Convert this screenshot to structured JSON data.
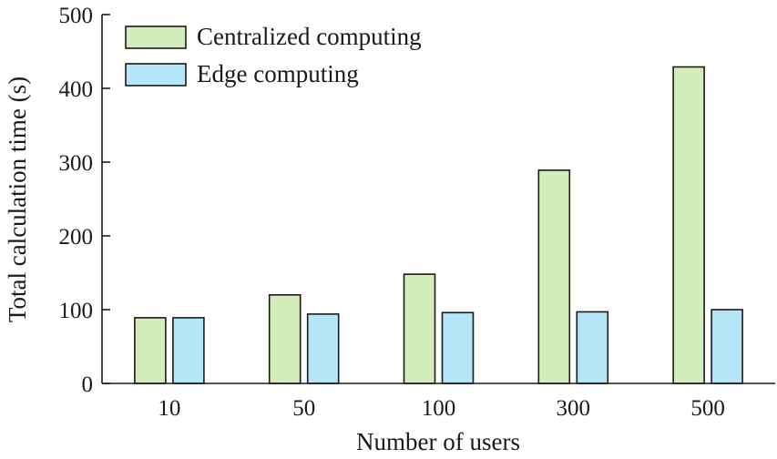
{
  "chart_data": {
    "type": "bar",
    "title": "",
    "xlabel": "Number of users",
    "ylabel": "Total calculation time (s)",
    "categories": [
      "10",
      "50",
      "100",
      "300",
      "500"
    ],
    "series": [
      {
        "name": "Centralized computing",
        "color": "#d3eebb",
        "values": [
          89,
          120,
          148,
          289,
          429
        ]
      },
      {
        "name": "Edge computing",
        "color": "#b5e6f7",
        "values": [
          89,
          94,
          96,
          97,
          100
        ]
      }
    ],
    "ylim": [
      0,
      500
    ],
    "yticks": [
      "0",
      "100",
      "200",
      "300",
      "400",
      "500"
    ],
    "grid": false,
    "legend_position": "top-left"
  }
}
